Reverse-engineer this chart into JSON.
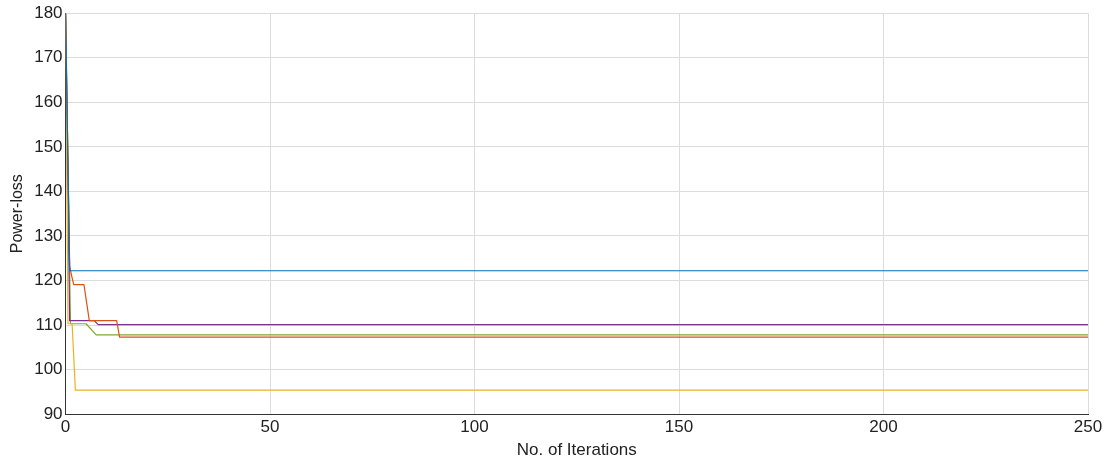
{
  "chart_data": {
    "type": "line",
    "xlabel": "No. of Iterations",
    "ylabel": "Power-loss",
    "xlim": [
      0,
      250
    ],
    "xticks": [
      0,
      50,
      100,
      150,
      200,
      250
    ],
    "ylim": [
      90,
      180
    ],
    "yticks": [
      90,
      100,
      110,
      120,
      130,
      140,
      150,
      160,
      170,
      180
    ],
    "grid": true,
    "legend": false,
    "marker": "none",
    "line_style": "solid",
    "series": [
      {
        "color": "#0072bd",
        "x": [
          0,
          1,
          250
        ],
        "values": [
          180,
          122.2,
          122.2
        ]
      },
      {
        "color": "#d95319",
        "x": [
          0,
          1,
          1.5,
          2,
          4.5,
          5.8,
          12.5,
          13.2,
          250
        ],
        "values": [
          180,
          123.3,
          121,
          119.1,
          119.1,
          111,
          111,
          107.3,
          107.3
        ]
      },
      {
        "color": "#edb120",
        "x": [
          0,
          0.6,
          1.6,
          2.4,
          250
        ],
        "values": [
          180,
          110.3,
          110.3,
          95.4,
          95.4
        ]
      },
      {
        "color": "#7e2f8e",
        "x": [
          0,
          1,
          7,
          8,
          250
        ],
        "values": [
          180,
          111,
          111,
          110.1,
          110.1
        ]
      },
      {
        "color": "#77ac30",
        "x": [
          0,
          1.2,
          5,
          7.5,
          250
        ],
        "values": [
          180,
          110.3,
          110.3,
          107.8,
          107.8
        ]
      }
    ]
  }
}
